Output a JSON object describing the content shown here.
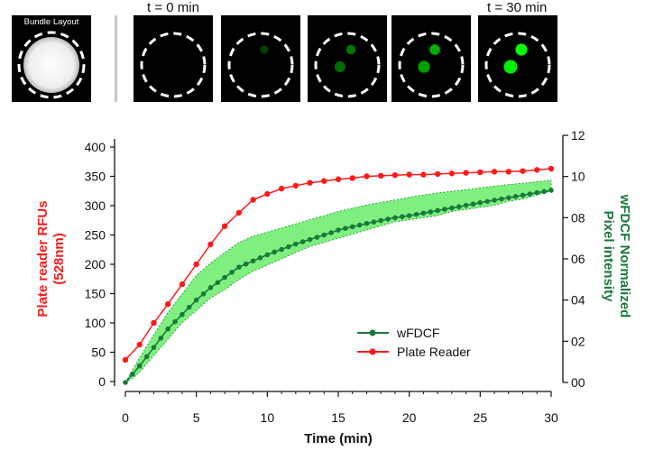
{
  "panels": {
    "layout_label": "Bundle Layout",
    "start_label": "t = 0 min",
    "end_label": "t = 30 min",
    "frames": [
      {
        "spots": []
      },
      {
        "spots": [
          {
            "intensity": 0.3
          }
        ]
      },
      {
        "spots": [
          {
            "intensity": 0.55
          },
          {
            "intensity": 0.5
          }
        ]
      },
      {
        "spots": [
          {
            "intensity": 0.75
          },
          {
            "intensity": 0.7
          }
        ]
      },
      {
        "spots": [
          {
            "intensity": 1.0
          },
          {
            "intensity": 0.95
          }
        ]
      }
    ]
  },
  "colors": {
    "red": "#ff1a1a",
    "green": "#1a7a3c",
    "band": "#7ff07f",
    "band_edge": "#1a8c2a"
  },
  "chart_data": {
    "type": "line",
    "xlabel": "Time (min)",
    "ylabel_left": [
      "Plate reader RFUs",
      "(528nm)"
    ],
    "ylabel_right": [
      "wFDCF Normalized",
      "Pixel intensity"
    ],
    "xlim": [
      0,
      30
    ],
    "ylim_left": [
      0,
      400
    ],
    "ylim_right": [
      0,
      12
    ],
    "xticks": [
      "0",
      "5",
      "10",
      "15",
      "20",
      "25",
      "30"
    ],
    "yticks_left": [
      "0",
      "50",
      "100",
      "150",
      "200",
      "250",
      "300",
      "350",
      "400"
    ],
    "yticks_right": [
      "00",
      "02",
      "04",
      "06",
      "08",
      "10",
      "12"
    ],
    "legend": [
      "wFDCF",
      "Plate Reader"
    ],
    "legend_position": "lower-right",
    "series": [
      {
        "name": "Plate Reader",
        "axis": "left",
        "x": [
          0,
          1,
          2,
          3,
          4,
          5,
          6,
          7,
          8,
          9,
          10,
          11,
          12,
          13,
          14,
          15,
          16,
          17,
          18,
          19,
          20,
          21,
          22,
          23,
          24,
          25,
          26,
          27,
          28,
          29,
          30
        ],
        "values": [
          37,
          63,
          100,
          132,
          166,
          200,
          234,
          265,
          288,
          310,
          320,
          329,
          334,
          339,
          342,
          345,
          347,
          350,
          351,
          352,
          353,
          353,
          354,
          355,
          356,
          357,
          358,
          358,
          359,
          361,
          363
        ]
      },
      {
        "name": "wFDCF",
        "axis": "right",
        "x": [
          0,
          0.5,
          1,
          1.5,
          2,
          2.5,
          3,
          3.5,
          4,
          4.5,
          5,
          5.5,
          6,
          6.5,
          7,
          7.5,
          8,
          8.5,
          9,
          9.5,
          10,
          10.5,
          11,
          11.5,
          12,
          12.5,
          13,
          13.5,
          14,
          14.5,
          15,
          15.5,
          16,
          16.5,
          17,
          17.5,
          18,
          18.5,
          19,
          19.5,
          20,
          20.5,
          21,
          21.5,
          22,
          22.5,
          23,
          23.5,
          24,
          24.5,
          25,
          25.5,
          26,
          26.5,
          27,
          27.5,
          28,
          28.5,
          29,
          29.5,
          30
        ],
        "values": [
          0,
          0.4,
          0.8,
          1.25,
          1.7,
          2.15,
          2.6,
          2.95,
          3.3,
          3.65,
          4.0,
          4.3,
          4.6,
          4.85,
          5.1,
          5.35,
          5.6,
          5.75,
          5.9,
          6.05,
          6.2,
          6.33,
          6.46,
          6.59,
          6.72,
          6.83,
          6.94,
          7.05,
          7.16,
          7.27,
          7.4,
          7.48,
          7.56,
          7.64,
          7.72,
          7.79,
          7.86,
          7.93,
          8.0,
          8.05,
          8.1,
          8.16,
          8.22,
          8.28,
          8.35,
          8.41,
          8.47,
          8.53,
          8.6,
          8.66,
          8.73,
          8.79,
          8.85,
          8.91,
          8.97,
          9.03,
          9.09,
          9.15,
          9.21,
          9.27,
          9.33
        ],
        "band_lower": [
          0,
          0.2,
          0.5,
          0.9,
          1.3,
          1.7,
          2.1,
          2.5,
          2.9,
          3.2,
          3.5,
          3.8,
          4.1,
          4.3,
          4.5,
          4.75,
          5.0,
          5.2,
          5.4,
          5.55,
          5.7,
          5.85,
          6.0,
          6.15,
          6.3,
          6.45,
          6.6,
          6.7,
          6.8,
          6.9,
          7.0,
          7.1,
          7.2,
          7.3,
          7.4,
          7.5,
          7.6,
          7.7,
          7.8,
          7.85,
          7.9,
          7.95,
          8.0,
          8.05,
          8.1,
          8.2,
          8.3,
          8.35,
          8.4,
          8.45,
          8.5,
          8.55,
          8.6,
          8.7,
          8.8,
          8.85,
          8.9,
          9.0,
          9.1,
          9.2,
          9.3
        ],
        "band_upper": [
          0,
          0.6,
          1.2,
          1.75,
          2.3,
          2.85,
          3.4,
          3.85,
          4.3,
          4.75,
          5.2,
          5.5,
          5.8,
          6.05,
          6.3,
          6.55,
          6.8,
          6.95,
          7.1,
          7.2,
          7.3,
          7.4,
          7.5,
          7.6,
          7.7,
          7.8,
          7.9,
          8.0,
          8.1,
          8.2,
          8.3,
          8.38,
          8.46,
          8.54,
          8.62,
          8.68,
          8.74,
          8.8,
          8.86,
          8.92,
          9.0,
          9.05,
          9.1,
          9.15,
          9.2,
          9.24,
          9.28,
          9.32,
          9.36,
          9.4,
          9.45,
          9.49,
          9.53,
          9.57,
          9.61,
          9.64,
          9.67,
          9.71,
          9.75,
          9.78,
          9.82
        ]
      }
    ]
  }
}
